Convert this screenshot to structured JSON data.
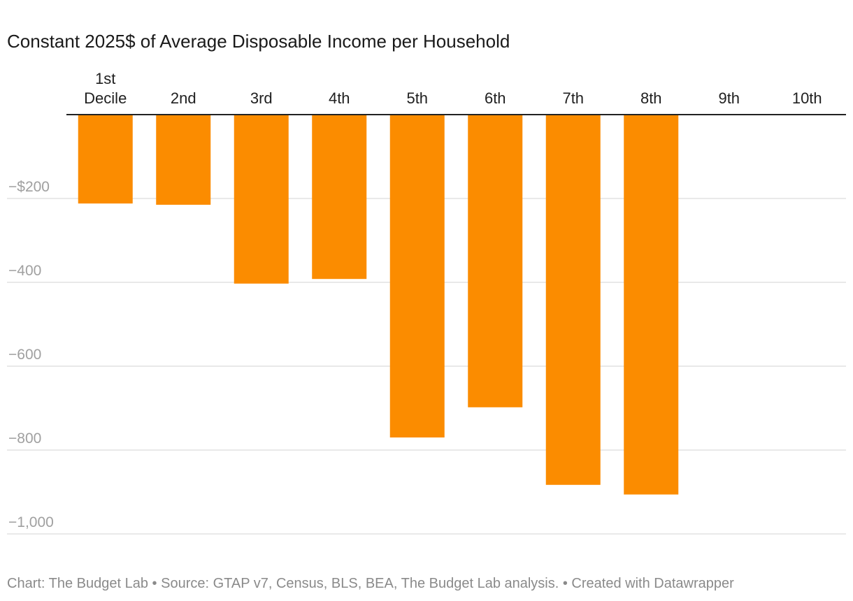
{
  "chart_data": {
    "type": "bar",
    "title": "Constant 2025$ of Average Disposable Income per Household",
    "categories": [
      [
        "1st",
        "Decile"
      ],
      [
        "2nd"
      ],
      [
        "3rd"
      ],
      [
        "4th"
      ],
      [
        "5th"
      ],
      [
        "6th"
      ],
      [
        "7th"
      ],
      [
        "8th"
      ],
      [
        "9th"
      ],
      [
        "10th"
      ]
    ],
    "values": [
      -212,
      -215,
      -403,
      -392,
      -770,
      -698,
      -883,
      -906,
      null,
      null
    ],
    "ylim": [
      -1000,
      0
    ],
    "yticks": [
      {
        "value": -200,
        "label": "−$200"
      },
      {
        "value": -400,
        "label": "−400"
      },
      {
        "value": -600,
        "label": "−600"
      },
      {
        "value": -800,
        "label": "−800"
      },
      {
        "value": -1000,
        "label": "−1,000"
      }
    ],
    "category_axis_position": "top",
    "grid": true,
    "bar_color": "#fb8c00",
    "gridline_color": "#e2e2e2",
    "baseline_color": "#222222",
    "xlabel": "",
    "ylabel": ""
  },
  "footer": {
    "text": "Chart: The Budget Lab • Source: GTAP v7, Census, BLS, BEA, The Budget Lab analysis. • Created with Datawrapper"
  }
}
